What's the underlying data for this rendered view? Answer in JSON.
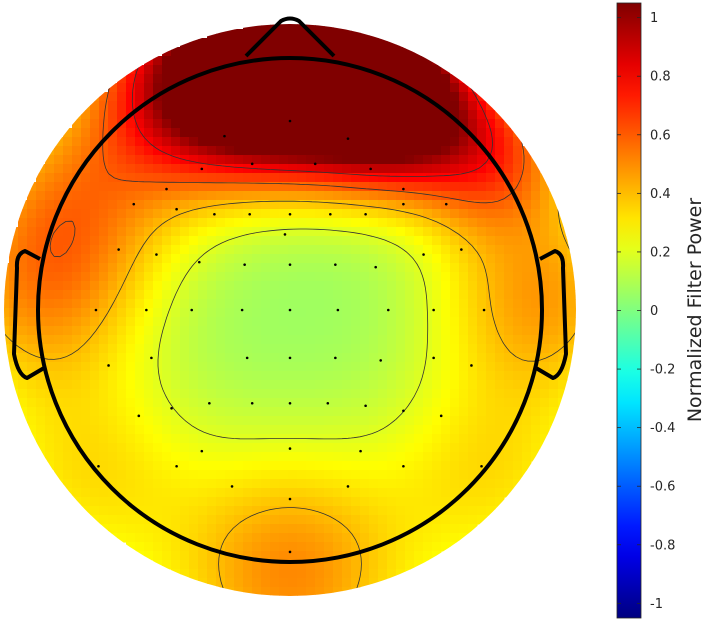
{
  "chart_data": {
    "type": "heatmap",
    "title": "",
    "xlabel": "",
    "ylabel": "",
    "colorbar": {
      "label": "Normalized Filter Power",
      "range": [
        -1.05,
        1.05
      ],
      "ticks": [
        -1,
        -0.8,
        -0.6,
        -0.4,
        -0.2,
        0,
        0.2,
        0.4,
        0.6,
        0.8,
        1
      ],
      "tick_labels": [
        "-1",
        "-0.8",
        "-0.6",
        "-0.4",
        "-0.2",
        "0",
        "0.2",
        "0.4",
        "0.6",
        "0.8",
        "1"
      ],
      "colormap": "jet"
    },
    "head_outline": true,
    "contour_levels": [
      0.2,
      0.4,
      0.6,
      0.8
    ],
    "electrodes": [
      [
        -0.02,
        0.3
      ],
      [
        0.0,
        0.75
      ],
      [
        -0.26,
        0.69
      ],
      [
        0.23,
        0.68
      ],
      [
        -0.35,
        0.56
      ],
      [
        -0.15,
        0.58
      ],
      [
        0.1,
        0.58
      ],
      [
        0.32,
        0.56
      ],
      [
        -0.49,
        0.48
      ],
      [
        0.45,
        0.48
      ],
      [
        -0.62,
        0.42
      ],
      [
        -0.45,
        0.4
      ],
      [
        -0.3,
        0.38
      ],
      [
        -0.16,
        0.38
      ],
      [
        0.0,
        0.38
      ],
      [
        0.16,
        0.38
      ],
      [
        0.3,
        0.38
      ],
      [
        0.45,
        0.42
      ],
      [
        0.62,
        0.42
      ],
      [
        -0.68,
        0.24
      ],
      [
        -0.53,
        0.22
      ],
      [
        -0.36,
        0.19
      ],
      [
        -0.18,
        0.18
      ],
      [
        0.0,
        0.18
      ],
      [
        0.18,
        0.18
      ],
      [
        0.34,
        0.17
      ],
      [
        0.53,
        0.22
      ],
      [
        0.68,
        0.24
      ],
      [
        -0.77,
        0.0
      ],
      [
        -0.57,
        0.0
      ],
      [
        -0.39,
        0.0
      ],
      [
        -0.19,
        0.0
      ],
      [
        0.0,
        0.0
      ],
      [
        0.19,
        0.0
      ],
      [
        0.39,
        0.0
      ],
      [
        0.57,
        0.0
      ],
      [
        0.77,
        0.0
      ],
      [
        -0.72,
        -0.22
      ],
      [
        -0.55,
        -0.19
      ],
      [
        -0.17,
        -0.19
      ],
      [
        0.0,
        -0.19
      ],
      [
        0.18,
        -0.19
      ],
      [
        0.36,
        -0.2
      ],
      [
        0.57,
        -0.19
      ],
      [
        0.72,
        -0.22
      ],
      [
        -0.6,
        -0.42
      ],
      [
        -0.47,
        -0.39
      ],
      [
        -0.32,
        -0.37
      ],
      [
        -0.15,
        -0.37
      ],
      [
        0.0,
        -0.37
      ],
      [
        0.15,
        -0.37
      ],
      [
        0.3,
        -0.38
      ],
      [
        0.45,
        -0.4
      ],
      [
        0.6,
        -0.42
      ],
      [
        -0.35,
        -0.56
      ],
      [
        0.0,
        -0.55
      ],
      [
        0.28,
        -0.56
      ],
      [
        -0.76,
        -0.62
      ],
      [
        -0.45,
        -0.62
      ],
      [
        0.45,
        -0.62
      ],
      [
        0.76,
        -0.62
      ],
      [
        -0.23,
        -0.7
      ],
      [
        0.23,
        -0.7
      ],
      [
        0.0,
        -0.75
      ],
      [
        0.0,
        -0.96
      ]
    ],
    "field_sources": [
      {
        "x": 0.2,
        "y": 0.95,
        "amplitude": 1.3,
        "spread": 0.27
      },
      {
        "x": 0.45,
        "y": 0.8,
        "amplitude": 0.7,
        "spread": 0.22
      },
      {
        "x": -0.35,
        "y": 0.9,
        "amplitude": 1.0,
        "spread": 0.28
      },
      {
        "x": -0.05,
        "y": 0.92,
        "amplitude": 0.6,
        "spread": 0.22
      },
      {
        "x": 0.8,
        "y": 0.62,
        "amplitude": 0.5,
        "spread": 0.22
      },
      {
        "x": -0.85,
        "y": 0.45,
        "amplitude": 0.35,
        "spread": 0.3
      },
      {
        "x": 1.0,
        "y": 0.05,
        "amplitude": 0.4,
        "spread": 0.3
      },
      {
        "x": -1.0,
        "y": 0.05,
        "amplitude": 0.35,
        "spread": 0.3
      },
      {
        "x": 0.0,
        "y": -1.05,
        "amplitude": 0.45,
        "spread": 0.35
      },
      {
        "x": 0.8,
        "y": -0.65,
        "amplitude": 0.25,
        "spread": 0.3
      },
      {
        "x": -0.8,
        "y": -0.65,
        "amplitude": 0.25,
        "spread": 0.3
      }
    ],
    "field_baseline": 0.05,
    "colors": {
      "outline": "#000000",
      "contour": "#333333",
      "electrode": "#000000"
    }
  }
}
